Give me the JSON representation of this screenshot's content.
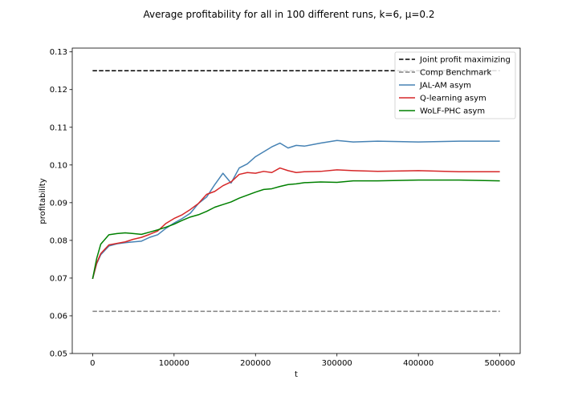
{
  "chart_data": {
    "type": "line",
    "title": "Average profitability for all in 100 different runs, k=6, μ=0.2",
    "xlabel": "t",
    "ylabel": "profitability",
    "xlim": [
      -25000,
      525000
    ],
    "ylim": [
      0.05,
      0.131
    ],
    "xticks": [
      0,
      100000,
      200000,
      300000,
      400000,
      500000
    ],
    "xtick_labels": [
      "0",
      "100000",
      "200000",
      "300000",
      "400000",
      "500000"
    ],
    "yticks": [
      0.05,
      0.06,
      0.07,
      0.08,
      0.09,
      0.1,
      0.11,
      0.12,
      0.13
    ],
    "ytick_labels": [
      "0.05",
      "0.06",
      "0.07",
      "0.08",
      "0.09",
      "0.10",
      "0.11",
      "0.12",
      "0.13"
    ],
    "grid": false,
    "legend_position": "top-right",
    "series": [
      {
        "name": "Joint profit maximizing",
        "color": "#000000",
        "style": "dashed",
        "x": [
          0,
          500000
        ],
        "y": [
          0.125,
          0.125
        ]
      },
      {
        "name": "Comp Benchmark",
        "color": "#808080",
        "style": "dashed",
        "x": [
          0,
          500000
        ],
        "y": [
          0.0612,
          0.0612
        ]
      },
      {
        "name": "JAL-AM asym",
        "color": "#4682b4",
        "style": "solid",
        "x": [
          0,
          5000,
          10000,
          20000,
          30000,
          40000,
          50000,
          60000,
          70000,
          80000,
          90000,
          100000,
          110000,
          120000,
          130000,
          140000,
          150000,
          160000,
          170000,
          180000,
          190000,
          200000,
          210000,
          220000,
          230000,
          240000,
          250000,
          260000,
          280000,
          300000,
          320000,
          350000,
          400000,
          450000,
          500000
        ],
        "y": [
          0.0698,
          0.0738,
          0.0762,
          0.0785,
          0.0791,
          0.0794,
          0.0796,
          0.0798,
          0.0808,
          0.0815,
          0.0832,
          0.0846,
          0.0858,
          0.0872,
          0.0898,
          0.0915,
          0.0948,
          0.0978,
          0.0952,
          0.0992,
          0.1003,
          0.1022,
          0.1035,
          0.1048,
          0.1058,
          0.1045,
          0.1052,
          0.105,
          0.1058,
          0.1065,
          0.1061,
          0.1063,
          0.1061,
          0.1063,
          0.1063
        ]
      },
      {
        "name": "Q-learning asym",
        "color": "#d62728",
        "style": "solid",
        "x": [
          0,
          5000,
          10000,
          20000,
          30000,
          40000,
          50000,
          60000,
          70000,
          80000,
          90000,
          100000,
          110000,
          120000,
          130000,
          140000,
          150000,
          160000,
          170000,
          180000,
          190000,
          200000,
          210000,
          220000,
          230000,
          240000,
          250000,
          260000,
          280000,
          300000,
          320000,
          350000,
          400000,
          450000,
          500000
        ],
        "y": [
          0.0698,
          0.074,
          0.0765,
          0.0788,
          0.0792,
          0.0796,
          0.0803,
          0.0808,
          0.0816,
          0.0825,
          0.0845,
          0.0858,
          0.0868,
          0.0882,
          0.0898,
          0.0922,
          0.093,
          0.0945,
          0.0955,
          0.0975,
          0.098,
          0.0978,
          0.0983,
          0.098,
          0.0992,
          0.0985,
          0.098,
          0.0982,
          0.0983,
          0.0987,
          0.0985,
          0.0983,
          0.0985,
          0.0982,
          0.0982
        ]
      },
      {
        "name": "WoLF-PHC asym",
        "color": "#008000",
        "style": "solid",
        "x": [
          0,
          5000,
          10000,
          20000,
          30000,
          40000,
          50000,
          60000,
          70000,
          80000,
          90000,
          100000,
          110000,
          120000,
          130000,
          140000,
          150000,
          160000,
          170000,
          180000,
          190000,
          200000,
          210000,
          220000,
          230000,
          240000,
          250000,
          260000,
          280000,
          300000,
          320000,
          350000,
          400000,
          450000,
          500000
        ],
        "y": [
          0.0698,
          0.0752,
          0.079,
          0.0815,
          0.0818,
          0.082,
          0.0818,
          0.0816,
          0.0822,
          0.0828,
          0.0835,
          0.0843,
          0.0853,
          0.0862,
          0.0868,
          0.0877,
          0.0888,
          0.0895,
          0.0902,
          0.0912,
          0.092,
          0.0928,
          0.0935,
          0.0937,
          0.0943,
          0.0948,
          0.095,
          0.0953,
          0.0955,
          0.0954,
          0.0958,
          0.0958,
          0.096,
          0.096,
          0.0958
        ]
      }
    ]
  }
}
